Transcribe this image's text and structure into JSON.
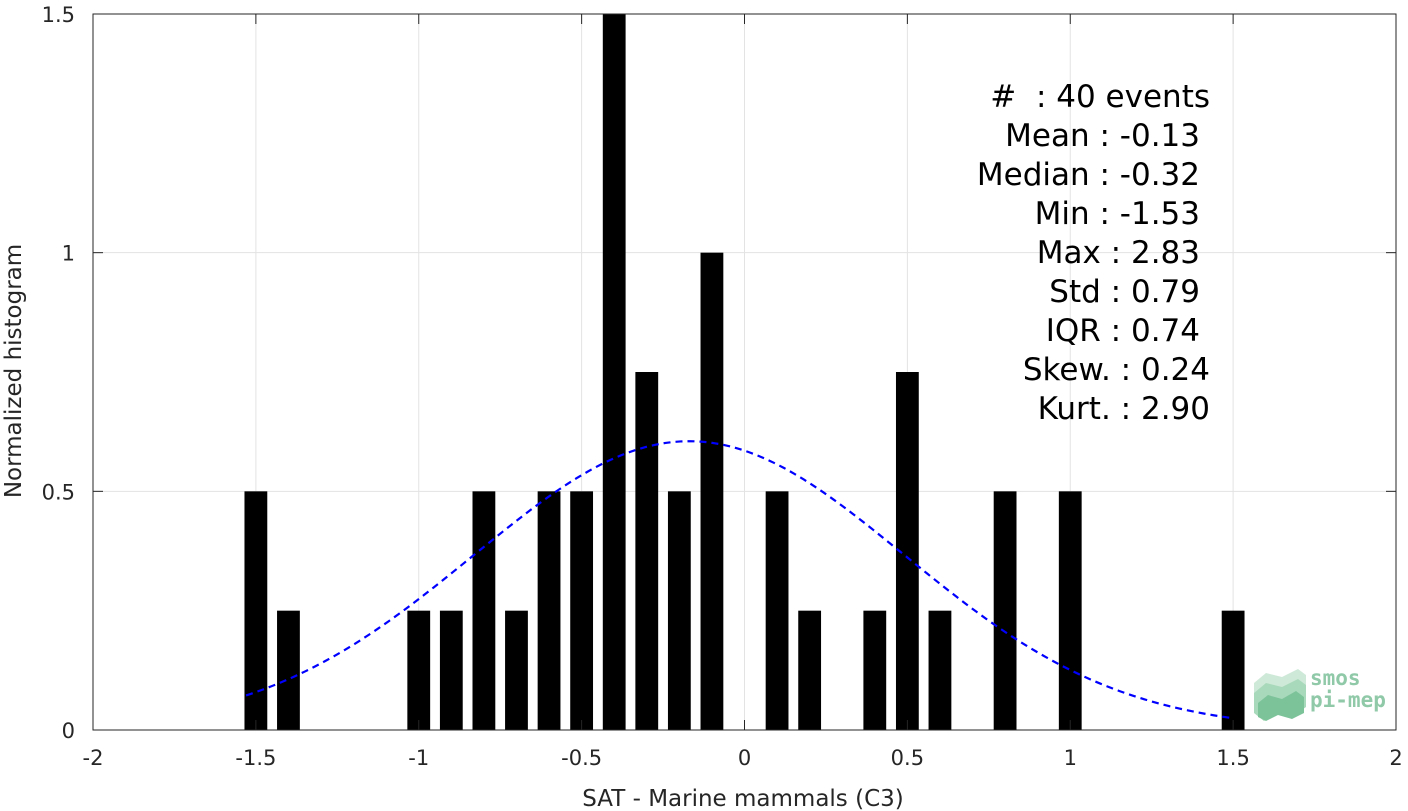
{
  "chart_data": {
    "type": "bar",
    "xlabel": "SAT - Marine mammals (C3)",
    "ylabel": "Normalized histogram",
    "xlim": [
      -2,
      2
    ],
    "ylim": [
      0,
      1.5
    ],
    "x_ticks": [
      -2,
      -1.5,
      -1,
      -0.5,
      0,
      0.5,
      1,
      1.5,
      2
    ],
    "x_tick_labels": [
      "-2",
      "-1.5",
      "-1",
      "-0.5",
      "0",
      "0.5",
      "1",
      "1.5",
      "2"
    ],
    "y_ticks": [
      0,
      0.5,
      1,
      1.5
    ],
    "y_tick_labels": [
      "0",
      "0.5",
      "1",
      "1.5"
    ],
    "grid": true,
    "bin_width": 0.1,
    "bar_color": "#000000",
    "bars": [
      {
        "x": -1.5,
        "y": 0.5
      },
      {
        "x": -1.4,
        "y": 0.25
      },
      {
        "x": -1.0,
        "y": 0.25
      },
      {
        "x": -0.9,
        "y": 0.25
      },
      {
        "x": -0.8,
        "y": 0.5
      },
      {
        "x": -0.7,
        "y": 0.25
      },
      {
        "x": -0.6,
        "y": 0.5
      },
      {
        "x": -0.5,
        "y": 0.5
      },
      {
        "x": -0.4,
        "y": 1.5
      },
      {
        "x": -0.3,
        "y": 0.75
      },
      {
        "x": -0.2,
        "y": 0.5
      },
      {
        "x": -0.1,
        "y": 1.0
      },
      {
        "x": 0.1,
        "y": 0.5
      },
      {
        "x": 0.2,
        "y": 0.25
      },
      {
        "x": 0.4,
        "y": 0.25
      },
      {
        "x": 0.5,
        "y": 0.75
      },
      {
        "x": 0.6,
        "y": 0.25
      },
      {
        "x": 0.8,
        "y": 0.5
      },
      {
        "x": 1.0,
        "y": 0.5
      },
      {
        "x": 1.5,
        "y": 0.25
      }
    ],
    "fit_curve": {
      "type": "normal",
      "mean": -0.17,
      "std": 0.66,
      "peak": 0.605,
      "x_range": [
        -1.53,
        1.5
      ],
      "color": "#0000ff",
      "style": "dashed"
    }
  },
  "stats": [
    {
      "label": "#  ",
      "sep": ": ",
      "value": "40 events"
    },
    {
      "label": "Mean ",
      "sep": ": ",
      "value": "-0.13"
    },
    {
      "label": "Median ",
      "sep": ": ",
      "value": "-0.32"
    },
    {
      "label": "Min ",
      "sep": ": ",
      "value": "-1.53"
    },
    {
      "label": "Max ",
      "sep": ": ",
      "value": "2.83"
    },
    {
      "label": "Std ",
      "sep": ": ",
      "value": "0.79"
    },
    {
      "label": "IQR ",
      "sep": ": ",
      "value": "0.74"
    },
    {
      "label": "Skew. ",
      "sep": ": ",
      "value": "0.24"
    },
    {
      "label": "Kurt. ",
      "sep": ": ",
      "value": "2.90"
    }
  ],
  "logo": {
    "line1": "smos",
    "line2": "pi-mep"
  }
}
